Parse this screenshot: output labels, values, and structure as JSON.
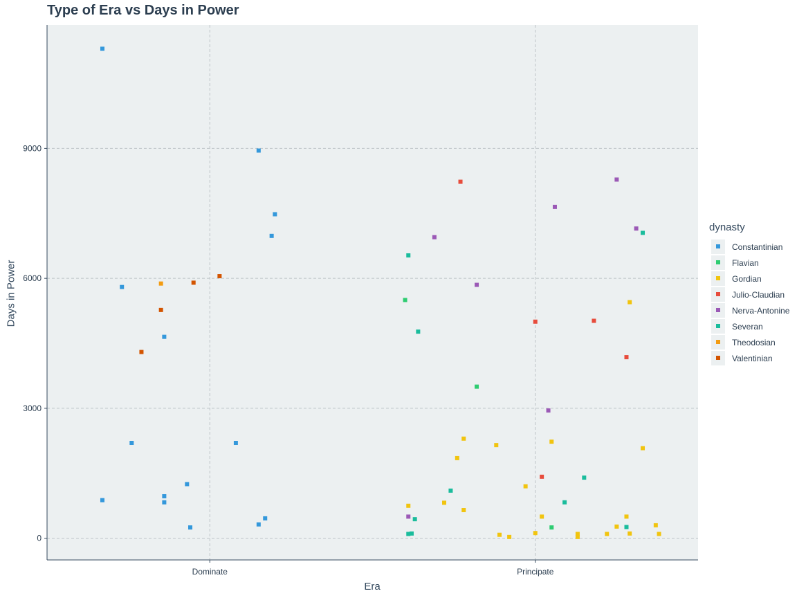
{
  "chart_data": {
    "type": "scatter",
    "title": "Type of Era vs Days in Power",
    "xlabel": "Era",
    "ylabel": "Days in Power",
    "categories": [
      "Dominate",
      "Principate"
    ],
    "ylim": [
      -500,
      11850
    ],
    "yticks": [
      0,
      3000,
      6000,
      9000
    ],
    "grid": true,
    "legend_title": "dynasty",
    "legend_position": "right",
    "jitter_note": "x positions are jittered offsets around each category (in category units)",
    "series": [
      {
        "name": "Constantinian",
        "color": "#3498db",
        "points": [
          {
            "x": -0.33,
            "y": 11300
          },
          {
            "x": 0.15,
            "y": 8950
          },
          {
            "x": 0.2,
            "y": 7480
          },
          {
            "x": 0.19,
            "y": 6980
          },
          {
            "x": -0.27,
            "y": 5800
          },
          {
            "x": -0.14,
            "y": 4650
          },
          {
            "x": -0.24,
            "y": 2200
          },
          {
            "x": 0.08,
            "y": 2200
          },
          {
            "x": -0.07,
            "y": 1250
          },
          {
            "x": -0.14,
            "y": 970
          },
          {
            "x": -0.33,
            "y": 880
          },
          {
            "x": -0.14,
            "y": 830
          },
          {
            "x": 0.17,
            "y": 460
          },
          {
            "x": 0.15,
            "y": 320
          },
          {
            "x": -0.06,
            "y": 250
          }
        ]
      },
      {
        "name": "Flavian",
        "color": "#2ecc71",
        "points": [
          {
            "x": -0.4,
            "y": 5500
          },
          {
            "x": -0.18,
            "y": 3500
          },
          {
            "x": 0.05,
            "y": 250
          }
        ]
      },
      {
        "name": "Gordian",
        "color": "#f1c40f",
        "points": [
          {
            "x": 0.29,
            "y": 5450
          },
          {
            "x": -0.22,
            "y": 2300
          },
          {
            "x": 0.05,
            "y": 2230
          },
          {
            "x": -0.12,
            "y": 2150
          },
          {
            "x": 0.33,
            "y": 2080
          },
          {
            "x": -0.24,
            "y": 1850
          },
          {
            "x": -0.03,
            "y": 1200
          },
          {
            "x": -0.39,
            "y": 750
          },
          {
            "x": -0.28,
            "y": 820
          },
          {
            "x": -0.22,
            "y": 650
          },
          {
            "x": 0.02,
            "y": 500
          },
          {
            "x": 0.28,
            "y": 500
          },
          {
            "x": 0.37,
            "y": 300
          },
          {
            "x": 0.25,
            "y": 270
          },
          {
            "x": 0.0,
            "y": 120
          },
          {
            "x": 0.13,
            "y": 100
          },
          {
            "x": -0.11,
            "y": 80
          },
          {
            "x": 0.22,
            "y": 100
          },
          {
            "x": 0.29,
            "y": 110
          },
          {
            "x": 0.38,
            "y": 100
          },
          {
            "x": -0.08,
            "y": 30
          },
          {
            "x": 0.13,
            "y": 30
          }
        ]
      },
      {
        "name": "Julio-Claudian",
        "color": "#e74c3c",
        "points": [
          {
            "x": -0.23,
            "y": 8230
          },
          {
            "x": 0.0,
            "y": 5000
          },
          {
            "x": 0.18,
            "y": 5020
          },
          {
            "x": 0.28,
            "y": 4180
          },
          {
            "x": 0.02,
            "y": 1420
          }
        ]
      },
      {
        "name": "Nerva-Antonine",
        "color": "#9b59b6",
        "points": [
          {
            "x": 0.25,
            "y": 8280
          },
          {
            "x": 0.06,
            "y": 7650
          },
          {
            "x": 0.31,
            "y": 7150
          },
          {
            "x": -0.31,
            "y": 6950
          },
          {
            "x": -0.18,
            "y": 5850
          },
          {
            "x": 0.04,
            "y": 2950
          },
          {
            "x": -0.39,
            "y": 500
          }
        ]
      },
      {
        "name": "Severan",
        "color": "#1abc9c",
        "points": [
          {
            "x": 0.33,
            "y": 7050
          },
          {
            "x": -0.39,
            "y": 6530
          },
          {
            "x": -0.36,
            "y": 4770
          },
          {
            "x": 0.15,
            "y": 1400
          },
          {
            "x": -0.26,
            "y": 1100
          },
          {
            "x": 0.09,
            "y": 830
          },
          {
            "x": -0.37,
            "y": 440
          },
          {
            "x": 0.28,
            "y": 260
          },
          {
            "x": -0.39,
            "y": 100
          },
          {
            "x": -0.38,
            "y": 110
          }
        ]
      },
      {
        "name": "Theodosian",
        "color": "#f39c12",
        "points": [
          {
            "x": -0.15,
            "y": 5880
          }
        ]
      },
      {
        "name": "Valentinian",
        "color": "#d35400",
        "points": [
          {
            "x": 0.03,
            "y": 6050
          },
          {
            "x": -0.05,
            "y": 5900
          },
          {
            "x": -0.15,
            "y": 5270
          },
          {
            "x": -0.21,
            "y": 4300
          }
        ]
      }
    ]
  }
}
